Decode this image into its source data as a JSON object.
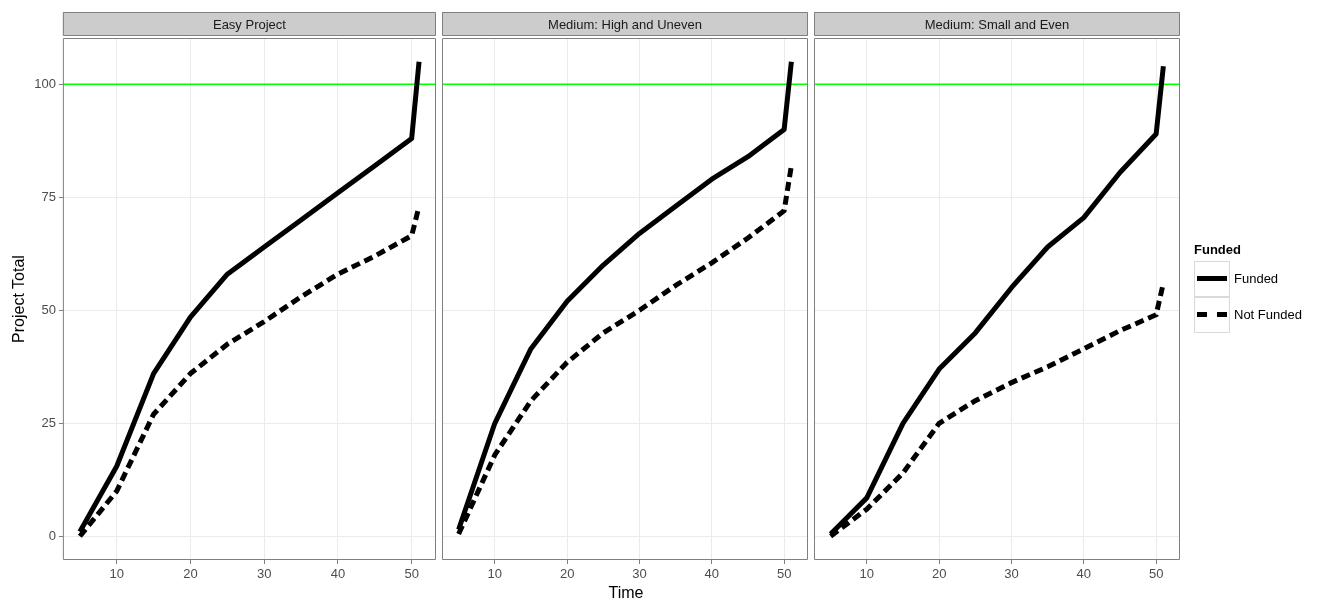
{
  "chart_data": [
    {
      "type": "line",
      "title": "Easy Project",
      "ylabel": "Project Total",
      "legend": "right",
      "legend_title": "Funded",
      "xlim": [
        2.7,
        53.3
      ],
      "xticks": [
        10,
        20,
        30,
        40,
        50
      ],
      "ylim": [
        -5.25,
        110.25
      ],
      "yticks": [
        0,
        25,
        50,
        75,
        100
      ],
      "grid": true,
      "ref_lines": [
        {
          "axis": "y",
          "value": 100,
          "color": "#00ff00"
        }
      ],
      "series": [
        {
          "name": "Funded",
          "color": "#000000",
          "line_style": "solid",
          "x": [
            5,
            10,
            15,
            20,
            25,
            30,
            35,
            40,
            45,
            50,
            51
          ],
          "values": [
            1,
            15.5,
            36,
            48.5,
            58,
            64,
            70,
            76,
            82,
            88,
            105
          ]
        },
        {
          "name": "Not Funded",
          "color": "#000000",
          "line_style": "dashed",
          "x": [
            5,
            10,
            15,
            20,
            25,
            30,
            35,
            40,
            45,
            50,
            51
          ],
          "values": [
            0,
            10,
            27,
            36,
            42.5,
            47.5,
            53,
            58,
            62,
            66.5,
            73
          ]
        }
      ]
    },
    {
      "type": "line",
      "title": "Medium: High and Uneven",
      "xlabel": "Time",
      "xlim": [
        2.7,
        53.3
      ],
      "xticks": [
        10,
        20,
        30,
        40,
        50
      ],
      "ylim": [
        -5.25,
        110.25
      ],
      "yticks": [
        0,
        25,
        50,
        75,
        100
      ],
      "grid": true,
      "tick_labels": "x",
      "ref_lines": [
        {
          "axis": "y",
          "value": 100,
          "color": "#00ff00"
        }
      ],
      "series": [
        {
          "color": "#000000",
          "line_style": "solid",
          "x": [
            5,
            10,
            15,
            20,
            25,
            30,
            35,
            40,
            45,
            50,
            51
          ],
          "values": [
            1.5,
            25,
            41.5,
            52,
            60,
            67,
            73,
            79,
            84,
            90,
            105
          ]
        },
        {
          "color": "#000000",
          "line_style": "dashed",
          "x": [
            5,
            10,
            15,
            20,
            25,
            30,
            35,
            40,
            45,
            50,
            51
          ],
          "values": [
            0.5,
            18,
            30,
            38.5,
            45,
            50,
            55.5,
            60.5,
            66,
            72,
            82
          ]
        }
      ]
    },
    {
      "type": "line",
      "title": "Medium: Small and Even",
      "xlim": [
        2.7,
        53.3
      ],
      "xticks": [
        10,
        20,
        30,
        40,
        50
      ],
      "ylim": [
        -5.25,
        110.25
      ],
      "yticks": [
        0,
        25,
        50,
        75,
        100
      ],
      "grid": true,
      "tick_labels": "x",
      "ref_lines": [
        {
          "axis": "y",
          "value": 100,
          "color": "#00ff00"
        }
      ],
      "series": [
        {
          "color": "#000000",
          "line_style": "solid",
          "x": [
            5,
            10,
            15,
            20,
            25,
            30,
            35,
            40,
            45,
            50,
            51
          ],
          "values": [
            0.5,
            8.5,
            25,
            37,
            45,
            55,
            64,
            70.5,
            80.5,
            89,
            104
          ]
        },
        {
          "color": "#000000",
          "line_style": "dashed",
          "x": [
            5,
            10,
            15,
            20,
            25,
            30,
            35,
            40,
            45,
            50,
            51
          ],
          "values": [
            0,
            6,
            14,
            25,
            30,
            34,
            37.5,
            41.5,
            45.5,
            49,
            56
          ]
        }
      ]
    }
  ]
}
